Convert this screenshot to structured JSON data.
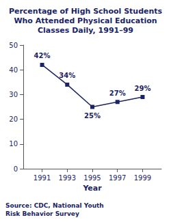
{
  "chart_data": {
    "type": "line",
    "title": "Percentage of High School Students\nWho Attended Physical Education\nClasses Daily, 1991–99",
    "x": [
      1991,
      1993,
      1995,
      1997,
      1999
    ],
    "values": [
      42,
      34,
      25,
      27,
      29
    ],
    "value_labels": [
      "42%",
      "34%",
      "25%",
      "27%",
      "29%"
    ],
    "data_labels": true,
    "color": "#1a2464",
    "marker": "square",
    "xlabel": "Year",
    "xlim": [
      1989.5,
      2000.5
    ],
    "xticks": [
      1991,
      1993,
      1995,
      1997,
      1999
    ],
    "ylim": [
      0,
      50
    ],
    "yticks": [
      0,
      10,
      20,
      30,
      40,
      50
    ],
    "grid": false,
    "annotations": [
      "Source: CDC, National Youth\nRisk Behavior Survey"
    ]
  }
}
